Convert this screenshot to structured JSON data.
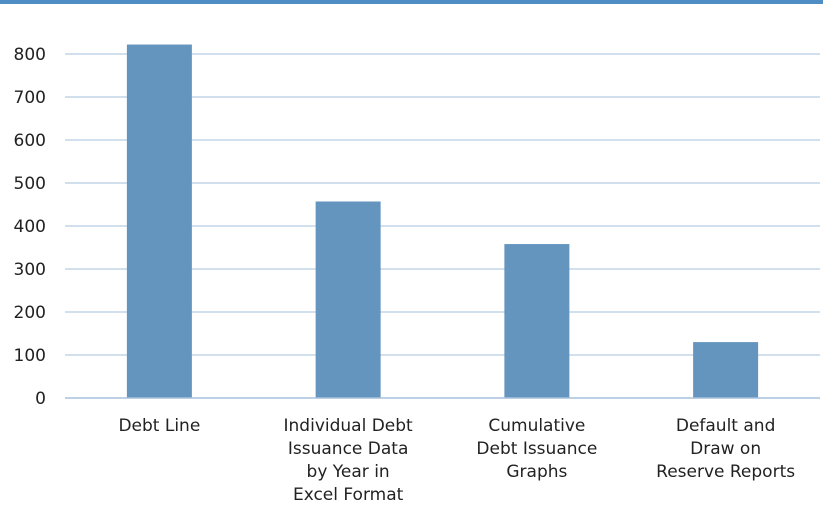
{
  "colors": {
    "top_rule": "#4f8ec4",
    "bar": "#6495bf",
    "grid": "#a6c1dd",
    "axis": "#a6c1dd"
  },
  "chart_data": {
    "type": "bar",
    "categories": [
      [
        "Debt Line"
      ],
      [
        "Individual Debt",
        "Issuance Data",
        "by Year in",
        "Excel Format"
      ],
      [
        "Cumulative",
        "Debt Issuance",
        "Graphs"
      ],
      [
        "Default and",
        "Draw on",
        "Reserve Reports"
      ]
    ],
    "values": [
      822,
      457,
      358,
      130
    ],
    "yticks": [
      "0",
      "100",
      "200",
      "300",
      "400",
      "500",
      "600",
      "700",
      "800"
    ],
    "ylim": [
      0,
      800
    ],
    "grid": true,
    "legend": "none"
  }
}
